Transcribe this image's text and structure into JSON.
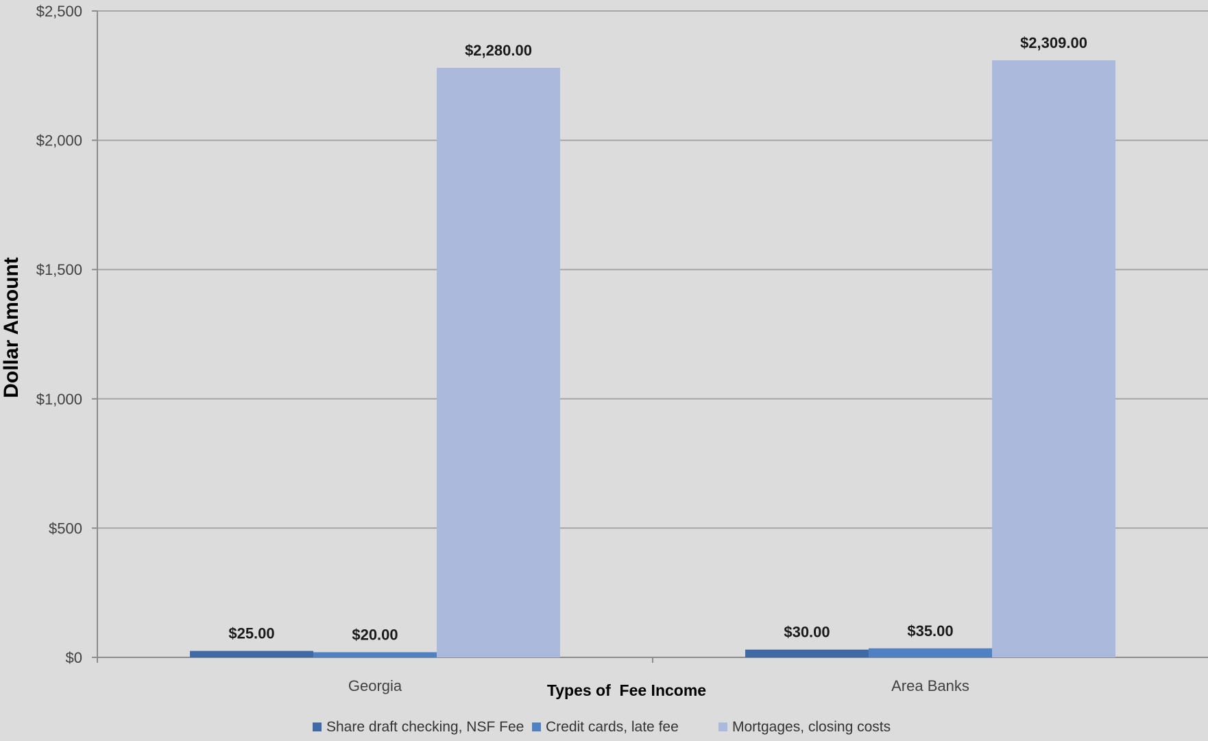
{
  "chart_data": {
    "type": "bar",
    "title": "",
    "xlabel": "Types of  Fee Income",
    "ylabel": "Dollar Amount",
    "categories": [
      "Georgia",
      "Area Banks"
    ],
    "ylim": [
      0,
      2500
    ],
    "yticks": [
      0,
      500,
      1000,
      1500,
      2000,
      2500
    ],
    "ytick_labels": [
      "$0",
      "$500",
      "$1,000",
      "$1,500",
      "$2,000",
      "$2,500"
    ],
    "grid": true,
    "legend_position": "bottom",
    "series": [
      {
        "name": "Share draft checking, NSF Fee",
        "color": "#3f6aa5",
        "values": [
          25,
          30
        ],
        "labels": [
          "$25.00",
          "$30.00"
        ]
      },
      {
        "name": "Credit cards, late fee",
        "color": "#4f81c3",
        "values": [
          20,
          35
        ],
        "labels": [
          "$20.00",
          "$35.00"
        ]
      },
      {
        "name": "Mortgages, closing costs",
        "color": "#aab9dc",
        "values": [
          2280,
          2309
        ],
        "labels": [
          "$2,280.00",
          "$2,309.00"
        ]
      }
    ]
  }
}
